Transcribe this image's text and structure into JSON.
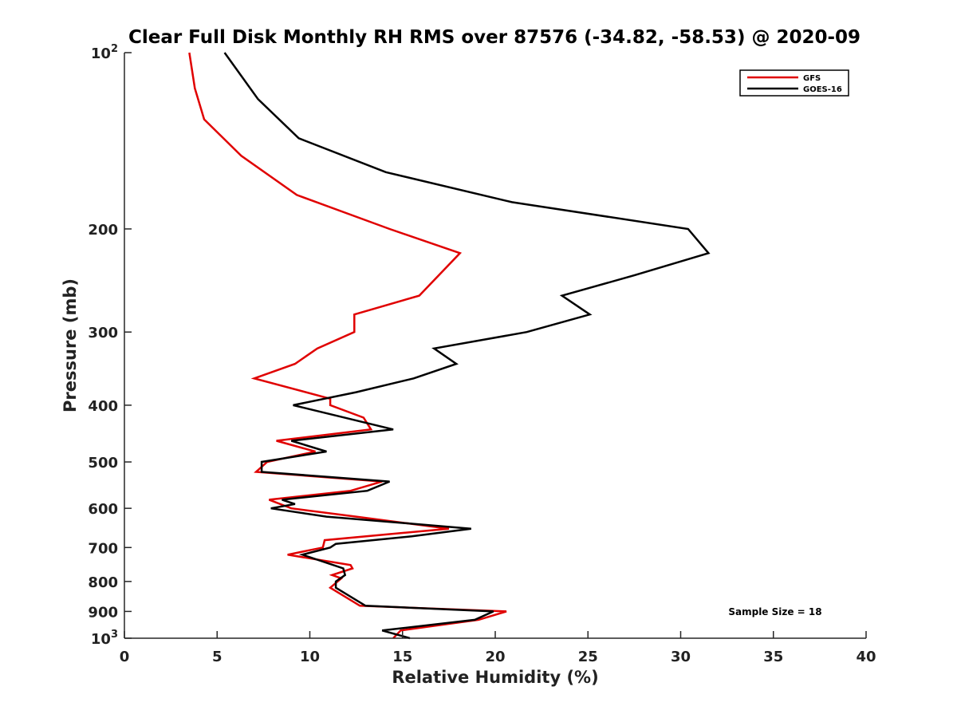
{
  "chart_data": {
    "type": "line",
    "title": "Clear Full Disk Monthly RH RMS over 87576 (-34.82, -58.53) @ 2020-09",
    "xlabel": "Relative Humidity (%)",
    "ylabel": "Pressure (mb)",
    "xlim": [
      0,
      40
    ],
    "ylim": [
      100,
      1000
    ],
    "y_scale": "log",
    "y_reversed": true,
    "grid": false,
    "legend_position": "top-right",
    "annotation": "Sample Size = 18",
    "x_ticks": [
      "0",
      "5",
      "10",
      "15",
      "20",
      "25",
      "30",
      "35",
      "40"
    ],
    "y_ticks": [
      {
        "value": 100,
        "base": "10",
        "exp": "2"
      },
      {
        "value": 200,
        "label": "200"
      },
      {
        "value": 300,
        "label": "300"
      },
      {
        "value": 400,
        "label": "400"
      },
      {
        "value": 500,
        "label": "500"
      },
      {
        "value": 600,
        "label": "600"
      },
      {
        "value": 700,
        "label": "700"
      },
      {
        "value": 800,
        "label": "800"
      },
      {
        "value": 900,
        "label": "900"
      },
      {
        "value": 1000,
        "base": "10",
        "exp": "3"
      }
    ],
    "series": [
      {
        "name": "GFS",
        "color": "#e00000",
        "points": [
          [
            3.5,
            100
          ],
          [
            3.8,
            115
          ],
          [
            4.3,
            130
          ],
          [
            6.3,
            150
          ],
          [
            9.3,
            175
          ],
          [
            14.3,
            200
          ],
          [
            18.1,
            220
          ],
          [
            15.9,
            260
          ],
          [
            12.4,
            280
          ],
          [
            12.4,
            300
          ],
          [
            10.4,
            320
          ],
          [
            9.2,
            340
          ],
          [
            7.0,
            360
          ],
          [
            11.1,
            390
          ],
          [
            11.1,
            400
          ],
          [
            12.9,
            420
          ],
          [
            13.3,
            440
          ],
          [
            8.2,
            460
          ],
          [
            10.3,
            480
          ],
          [
            7.7,
            500
          ],
          [
            7.1,
            520
          ],
          [
            13.9,
            540
          ],
          [
            12.2,
            560
          ],
          [
            7.8,
            580
          ],
          [
            9.0,
            600
          ],
          [
            12.5,
            620
          ],
          [
            17.5,
            650
          ],
          [
            10.8,
            680
          ],
          [
            10.7,
            700
          ],
          [
            8.8,
            720
          ],
          [
            12.2,
            750
          ],
          [
            12.3,
            760
          ],
          [
            11.2,
            780
          ],
          [
            11.7,
            790
          ],
          [
            11.1,
            820
          ],
          [
            12.7,
            880
          ],
          [
            20.6,
            900
          ],
          [
            19.1,
            930
          ],
          [
            14.9,
            970
          ],
          [
            14.5,
            1000
          ]
        ]
      },
      {
        "name": "GOES-16",
        "color": "#000000",
        "points": [
          [
            5.4,
            100
          ],
          [
            7.2,
            120
          ],
          [
            9.4,
            140
          ],
          [
            14.1,
            160
          ],
          [
            20.9,
            180
          ],
          [
            30.4,
            200
          ],
          [
            31.5,
            220
          ],
          [
            27.5,
            240
          ],
          [
            23.6,
            260
          ],
          [
            25.1,
            280
          ],
          [
            21.7,
            300
          ],
          [
            16.7,
            320
          ],
          [
            17.9,
            340
          ],
          [
            15.6,
            360
          ],
          [
            12.5,
            380
          ],
          [
            9.1,
            400
          ],
          [
            14.5,
            440
          ],
          [
            9.0,
            460
          ],
          [
            10.9,
            480
          ],
          [
            7.4,
            500
          ],
          [
            7.4,
            520
          ],
          [
            14.3,
            540
          ],
          [
            13.1,
            560
          ],
          [
            8.5,
            580
          ],
          [
            9.2,
            590
          ],
          [
            7.9,
            600
          ],
          [
            10.9,
            620
          ],
          [
            18.7,
            650
          ],
          [
            15.5,
            670
          ],
          [
            11.4,
            690
          ],
          [
            11.1,
            700
          ],
          [
            9.6,
            720
          ],
          [
            11.8,
            760
          ],
          [
            11.9,
            780
          ],
          [
            11.4,
            800
          ],
          [
            11.4,
            820
          ],
          [
            13.0,
            880
          ],
          [
            19.9,
            900
          ],
          [
            18.9,
            930
          ],
          [
            13.9,
            970
          ],
          [
            15.4,
            1000
          ]
        ]
      }
    ]
  }
}
